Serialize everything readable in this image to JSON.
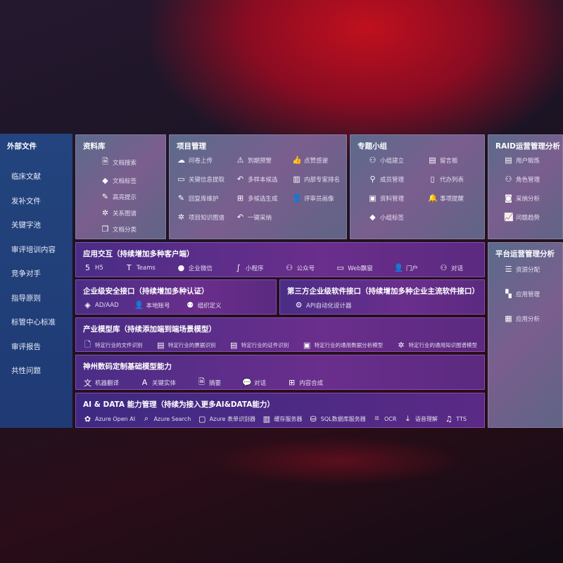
{
  "sidebar": {
    "title": "外部文件",
    "items": [
      "临床文献",
      "发补文件",
      "关键字池",
      "审评培训内容",
      "竞争对手",
      "指导原则",
      "标管中心标准",
      "审评报告",
      "共性问题"
    ]
  },
  "library": {
    "title": "资料库",
    "items": [
      [
        "文档搜索",
        "file-search-icon"
      ],
      [
        "文档标签",
        "tag-icon"
      ],
      [
        "高亮提示",
        "highlight-pen-icon"
      ],
      [
        "关系图谱",
        "graph-icon"
      ],
      [
        "文档分类",
        "document-copy-icon"
      ]
    ]
  },
  "project": {
    "title": "项目管理",
    "items": [
      [
        "问卷上传",
        "cloud-upload-icon"
      ],
      [
        "到期预警",
        "alarm-icon"
      ],
      [
        "点赞感谢",
        "thumbs-up-icon"
      ],
      [
        "关键信息提取",
        "window-icon"
      ],
      [
        "多样本候选",
        "reply-icon"
      ],
      [
        "内部专家排名",
        "ranking-icon"
      ],
      [
        "回复库维护",
        "edit-icon"
      ],
      [
        "多候选生成",
        "puzzle-icon"
      ],
      [
        "评审员画像",
        "user-icon"
      ],
      [
        "项目知识图谱",
        "graph-icon"
      ],
      [
        "一键采纳",
        "reply-icon"
      ]
    ]
  },
  "group": {
    "title": "专题小组",
    "items": [
      [
        "小组建立",
        "users-icon"
      ],
      [
        "留言板",
        "bbs-icon"
      ],
      [
        "成员管理",
        "user-add-icon"
      ],
      [
        "代办列表",
        "clipboard-icon"
      ],
      [
        "资料管理",
        "folder-icon"
      ],
      [
        "事项提醒",
        "bell-icon"
      ],
      [
        "小组标签",
        "tag-icon"
      ]
    ]
  },
  "raid": {
    "title": "RAID运营管理分析",
    "items": [
      [
        "用户锻炼",
        "id-card-icon"
      ],
      [
        "角色管理",
        "users-icon"
      ],
      [
        "采纳分析",
        "qa-icon"
      ],
      [
        "问题趋势",
        "trend-chart-icon"
      ]
    ]
  },
  "platform": {
    "title": "平台运营管理分析",
    "items": [
      [
        "资源分配",
        "list-icon"
      ],
      [
        "应用管理",
        "apps-icon"
      ],
      [
        "应用分析",
        "analysis-icon"
      ]
    ]
  },
  "app": {
    "title": "应用交互（持续增加多种客户端）",
    "items": [
      [
        "H5",
        "html5-icon"
      ],
      [
        "Teams",
        "teams-icon"
      ],
      [
        "企业微信",
        "wechat-work-icon"
      ],
      [
        "小程序",
        "mini-program-icon"
      ],
      [
        "公众号",
        "users-icon"
      ],
      [
        "Web飘窗",
        "window-icon"
      ],
      [
        "门户",
        "portal-user-icon"
      ],
      [
        "对话",
        "chat-users-icon"
      ]
    ]
  },
  "security": {
    "title": "企业级安全接口（持续增加多种认证）",
    "items": [
      [
        "AD/AAD",
        "diamond-icon"
      ],
      [
        "本地账号",
        "user-lock-icon"
      ],
      [
        "组织定义",
        "org-icon"
      ]
    ]
  },
  "thirdparty": {
    "title": "第三方企业级软件接口（持续增加多种企业主流软件接口）",
    "items": [
      [
        "API自动化设计器",
        "gear-icon"
      ]
    ]
  },
  "industry": {
    "title": "产业模型库（持续添加端到端场景模型）",
    "items": [
      [
        "特定行业的文件识别",
        "file-icon"
      ],
      [
        "特定行业的票据识别",
        "receipt-icon"
      ],
      [
        "特定行业的证件识别",
        "id-card-icon"
      ],
      [
        "特定行业的通用数据分析模型",
        "image-icon"
      ],
      [
        "特定行业的通用知识图谱模型",
        "graph-icon"
      ]
    ]
  },
  "base": {
    "title": "神州数码定制基础模型能力",
    "items": [
      [
        "机器翻译",
        "translate-icon"
      ],
      [
        "关键实体",
        "entity-icon"
      ],
      [
        "摘要",
        "document-icon"
      ],
      [
        "对话",
        "chat-icon"
      ],
      [
        "内容合成",
        "puzzle-icon"
      ]
    ]
  },
  "aidata": {
    "title": "AI & DATA 能力管理（持续为接入更多AI&DATA能力）",
    "items": [
      [
        "Azure Open AI",
        "openai-icon"
      ],
      [
        "Azure Search",
        "search-icon"
      ],
      [
        "Azure 表单识别器",
        "form-icon"
      ],
      [
        "缓存服务器",
        "cache-icon"
      ],
      [
        "SQL数据库服务器",
        "database-icon"
      ],
      [
        "OCR",
        "ocr-icon"
      ],
      [
        "语音理解",
        "speech-icon"
      ],
      [
        "TTS",
        "tts-icon"
      ]
    ]
  }
}
